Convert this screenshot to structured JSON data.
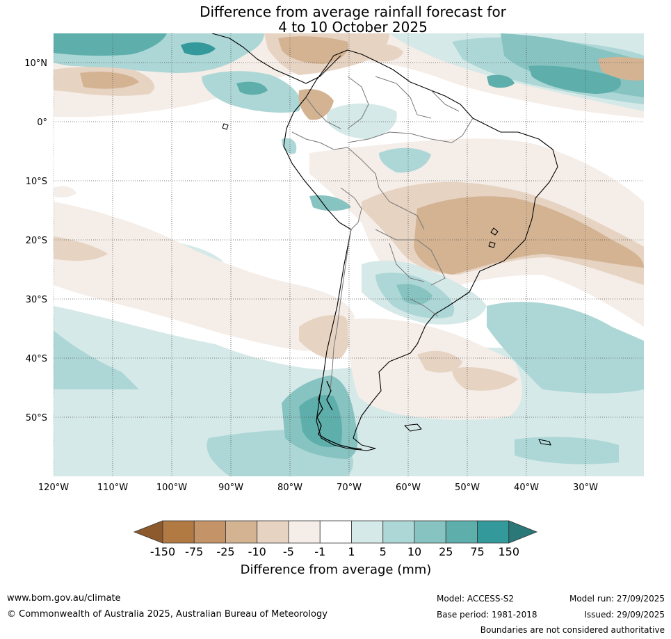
{
  "title": {
    "line1": "Difference from average rainfall forecast for",
    "line2": "4 to 10 October 2025"
  },
  "map": {
    "lat_labels": [
      "10°N",
      "0°",
      "10°S",
      "20°S",
      "30°S",
      "40°S",
      "50°S"
    ],
    "lon_labels": [
      "120°W",
      "110°W",
      "100°W",
      "90°W",
      "80°W",
      "70°W",
      "60°W",
      "50°W",
      "40°W",
      "30°W"
    ]
  },
  "colorbar": {
    "tick_labels": [
      "-150",
      "-75",
      "-25",
      "-10",
      "-5",
      "-1",
      "1",
      "5",
      "10",
      "25",
      "75",
      "150"
    ],
    "colors": [
      "#8c5a2c",
      "#b07a42",
      "#c49468",
      "#d3b392",
      "#e6d3c2",
      "#f5ede8",
      "#ffffff",
      "#d5e9e8",
      "#acd7d6",
      "#86c3c1",
      "#5eaeab",
      "#34999a",
      "#2a7878"
    ],
    "label": "Difference from average (mm)"
  },
  "footer": {
    "website": "www.bom.gov.au/climate",
    "copyright": "© Commonwealth of Australia 2025, Australian Bureau of Meteorology",
    "model": "Model: ACCESS-S2",
    "base_period": "Base period: 1981-2018",
    "model_run": "Model run: 27/09/2025",
    "issued": "Issued: 29/09/2025",
    "disclaimer": "Boundaries are not considered authoritative"
  }
}
